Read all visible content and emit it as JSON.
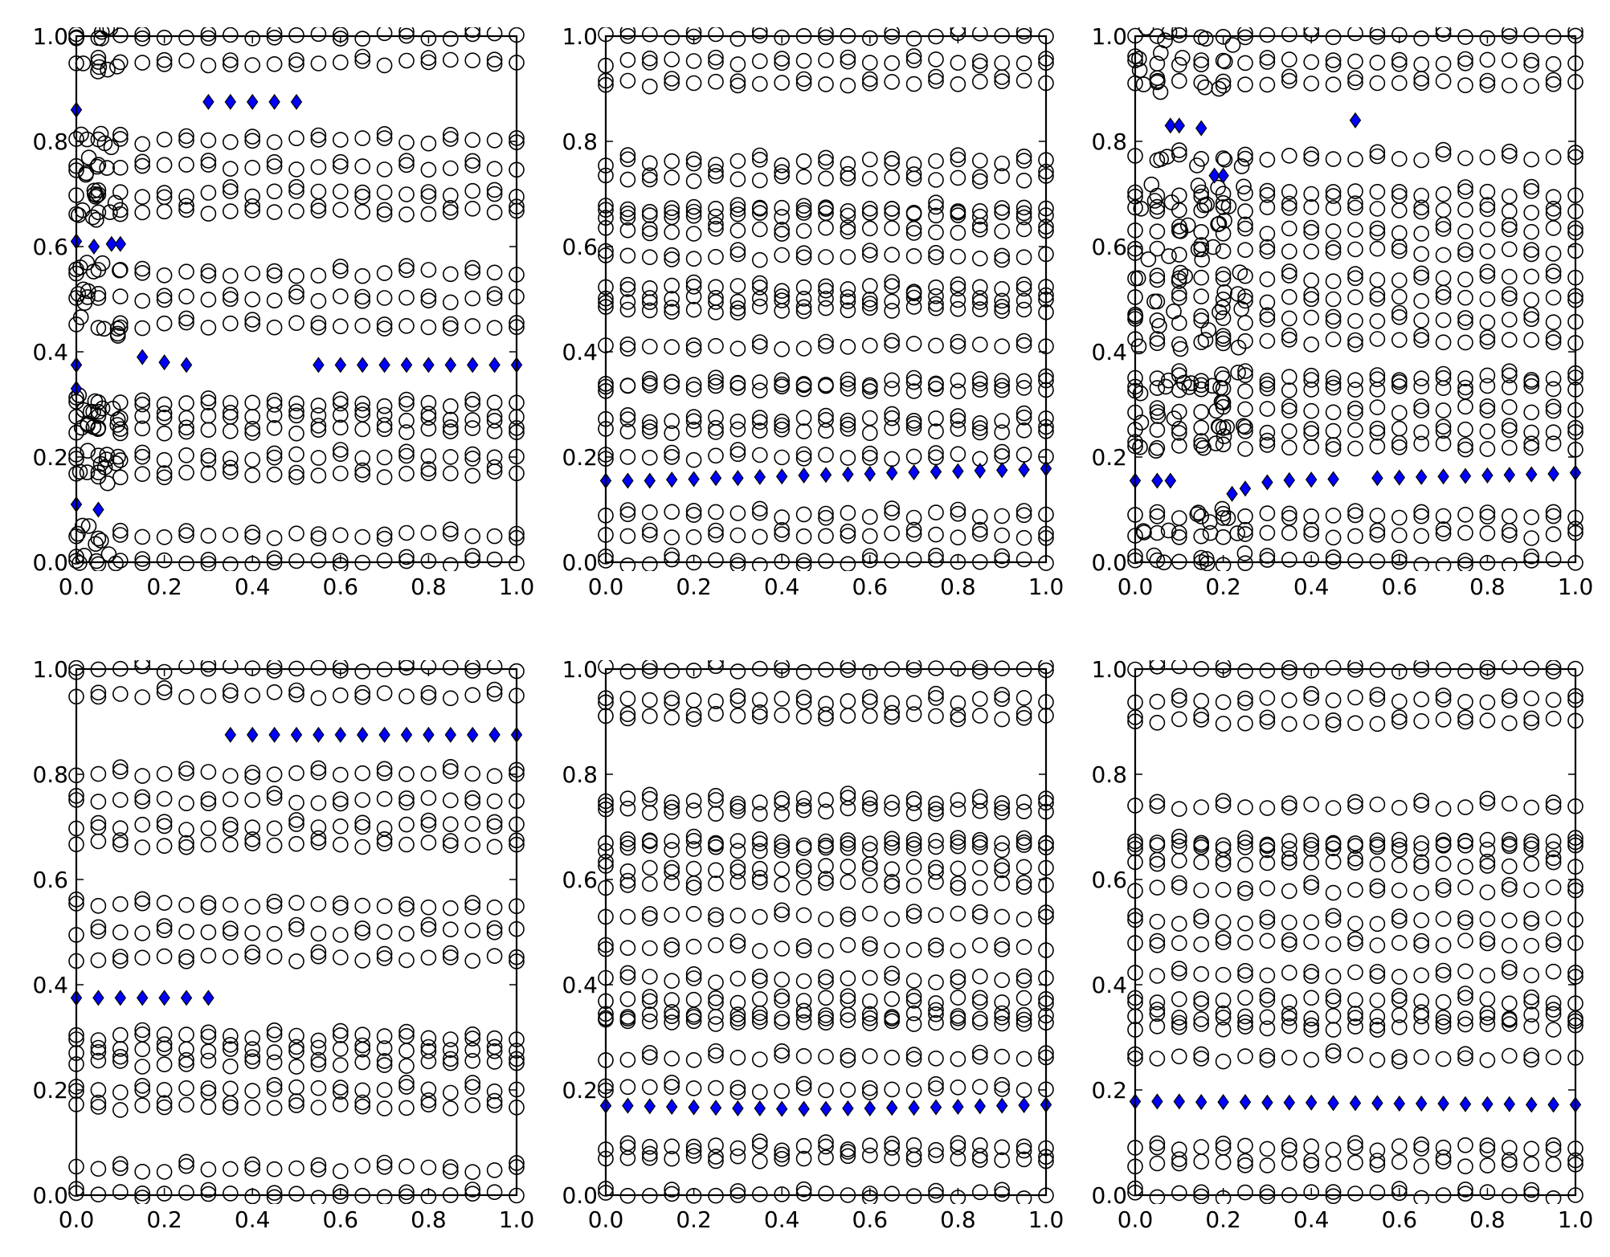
{
  "figure": {
    "rows": 2,
    "cols": 3,
    "hollow_marker_color": "#000000",
    "highlight_marker_color": "#0000ff",
    "axis_color": "#000000"
  },
  "chart_data": [
    {
      "type": "scatter",
      "title": "",
      "xlabel": "",
      "ylabel": "",
      "xlim": [
        0,
        1
      ],
      "ylim": [
        0,
        1
      ],
      "xticks": [
        "0.0",
        "0.2",
        "0.4",
        "0.6",
        "0.8",
        "1.0"
      ],
      "yticks": [
        "0.0",
        "0.2",
        "0.4",
        "0.6",
        "0.8",
        "1.0"
      ],
      "grid": false,
      "series": [
        {
          "marker": "hollow-circle",
          "bands": [
            {
              "y": 0.0
            },
            {
              "y": 0.05
            },
            {
              "y": 0.167
            },
            {
              "y": 0.2
            },
            {
              "y": 0.25
            },
            {
              "y": 0.275
            },
            {
              "y": 0.3
            },
            {
              "y": 0.45
            },
            {
              "y": 0.5
            },
            {
              "y": 0.55
            },
            {
              "y": 0.667
            },
            {
              "y": 0.7
            },
            {
              "y": 0.75
            },
            {
              "y": 0.8
            },
            {
              "y": 0.95
            },
            {
              "y": 1.0
            }
          ],
          "dense_x_range": [
            0.0,
            0.1
          ]
        },
        {
          "marker": "blue-diamond",
          "points": [
            [
              0.0,
              0.86
            ],
            [
              0.3,
              0.875
            ],
            [
              0.35,
              0.875
            ],
            [
              0.4,
              0.875
            ],
            [
              0.45,
              0.875
            ],
            [
              0.5,
              0.875
            ],
            [
              0.0,
              0.61
            ],
            [
              0.04,
              0.6
            ],
            [
              0.08,
              0.605
            ],
            [
              0.1,
              0.605
            ],
            [
              0.0,
              0.375
            ],
            [
              0.15,
              0.39
            ],
            [
              0.2,
              0.38
            ],
            [
              0.25,
              0.375
            ],
            [
              0.55,
              0.375
            ],
            [
              0.6,
              0.375
            ],
            [
              0.65,
              0.375
            ],
            [
              0.7,
              0.375
            ],
            [
              0.75,
              0.375
            ],
            [
              0.8,
              0.375
            ],
            [
              0.85,
              0.375
            ],
            [
              0.9,
              0.375
            ],
            [
              0.95,
              0.375
            ],
            [
              1.0,
              0.375
            ],
            [
              0.0,
              0.33
            ],
            [
              0.0,
              0.11
            ],
            [
              0.05,
              0.1
            ]
          ]
        }
      ]
    },
    {
      "type": "scatter",
      "title": "",
      "xlabel": "",
      "ylabel": "",
      "xlim": [
        0,
        1
      ],
      "ylim": [
        0,
        1
      ],
      "xticks": [
        "0.0",
        "0.2",
        "0.4",
        "0.6",
        "0.8",
        "1.0"
      ],
      "yticks": [
        "0.0",
        "0.2",
        "0.4",
        "0.6",
        "0.8",
        "1.0"
      ],
      "grid": false,
      "series": [
        {
          "marker": "hollow-circle",
          "bands": [
            {
              "y": 0.0
            },
            {
              "y": 0.05
            },
            {
              "y": 0.09
            },
            {
              "y": 0.2
            },
            {
              "y": 0.25
            },
            {
              "y": 0.27
            },
            {
              "y": 0.33
            },
            {
              "y": 0.34
            },
            {
              "y": 0.41
            },
            {
              "y": 0.48
            },
            {
              "y": 0.5
            },
            {
              "y": 0.52
            },
            {
              "y": 0.58
            },
            {
              "y": 0.63
            },
            {
              "y": 0.66
            },
            {
              "y": 0.67
            },
            {
              "y": 0.73
            },
            {
              "y": 0.76
            },
            {
              "y": 0.91
            },
            {
              "y": 0.95
            },
            {
              "y": 1.0
            }
          ]
        },
        {
          "marker": "blue-diamond",
          "points": [
            [
              0.0,
              0.155
            ],
            [
              0.05,
              0.155
            ],
            [
              0.1,
              0.155
            ],
            [
              0.15,
              0.157
            ],
            [
              0.2,
              0.158
            ],
            [
              0.25,
              0.16
            ],
            [
              0.3,
              0.16
            ],
            [
              0.35,
              0.162
            ],
            [
              0.4,
              0.163
            ],
            [
              0.45,
              0.165
            ],
            [
              0.5,
              0.166
            ],
            [
              0.55,
              0.167
            ],
            [
              0.6,
              0.168
            ],
            [
              0.65,
              0.17
            ],
            [
              0.7,
              0.171
            ],
            [
              0.75,
              0.172
            ],
            [
              0.8,
              0.173
            ],
            [
              0.85,
              0.174
            ],
            [
              0.9,
              0.175
            ],
            [
              0.95,
              0.176
            ],
            [
              1.0,
              0.178
            ]
          ]
        }
      ]
    },
    {
      "type": "scatter",
      "title": "",
      "xlabel": "",
      "ylabel": "",
      "xlim": [
        0,
        1
      ],
      "ylim": [
        0,
        1
      ],
      "xticks": [
        "0.0",
        "0.2",
        "0.4",
        "0.6",
        "0.8",
        "1.0"
      ],
      "yticks": [
        "0.0",
        "0.2",
        "0.4",
        "0.6",
        "0.8",
        "1.0"
      ],
      "grid": false,
      "series": [
        {
          "marker": "hollow-circle",
          "bands": [
            {
              "y": 0.0
            },
            {
              "y": 0.05
            },
            {
              "y": 0.09
            },
            {
              "y": 0.22
            },
            {
              "y": 0.25
            },
            {
              "y": 0.29
            },
            {
              "y": 0.33
            },
            {
              "y": 0.35
            },
            {
              "y": 0.42
            },
            {
              "y": 0.46
            },
            {
              "y": 0.5
            },
            {
              "y": 0.54
            },
            {
              "y": 0.59
            },
            {
              "y": 0.63
            },
            {
              "y": 0.67
            },
            {
              "y": 0.7
            },
            {
              "y": 0.77
            },
            {
              "y": 0.91
            },
            {
              "y": 0.95
            },
            {
              "y": 1.0
            }
          ],
          "dense_x_range": [
            0.0,
            0.25
          ]
        },
        {
          "marker": "blue-diamond",
          "points": [
            [
              0.0,
              0.155
            ],
            [
              0.05,
              0.155
            ],
            [
              0.08,
              0.155
            ],
            [
              0.22,
              0.13
            ],
            [
              0.25,
              0.14
            ],
            [
              0.3,
              0.152
            ],
            [
              0.35,
              0.156
            ],
            [
              0.4,
              0.157
            ],
            [
              0.45,
              0.158
            ],
            [
              0.55,
              0.16
            ],
            [
              0.6,
              0.161
            ],
            [
              0.65,
              0.162
            ],
            [
              0.7,
              0.163
            ],
            [
              0.75,
              0.164
            ],
            [
              0.8,
              0.165
            ],
            [
              0.85,
              0.166
            ],
            [
              0.9,
              0.167
            ],
            [
              0.95,
              0.168
            ],
            [
              1.0,
              0.17
            ],
            [
              0.08,
              0.83
            ],
            [
              0.1,
              0.83
            ],
            [
              0.15,
              0.825
            ],
            [
              0.18,
              0.735
            ],
            [
              0.2,
              0.735
            ],
            [
              0.5,
              0.84
            ]
          ]
        }
      ]
    },
    {
      "type": "scatter",
      "title": "",
      "xlabel": "",
      "ylabel": "",
      "xlim": [
        0,
        1
      ],
      "ylim": [
        0,
        1
      ],
      "xticks": [
        "0.0",
        "0.2",
        "0.4",
        "0.6",
        "0.8",
        "1.0"
      ],
      "yticks": [
        "0.0",
        "0.2",
        "0.4",
        "0.6",
        "0.8",
        "1.0"
      ],
      "grid": false,
      "series": [
        {
          "marker": "hollow-circle",
          "bands": [
            {
              "y": 0.0
            },
            {
              "y": 0.05
            },
            {
              "y": 0.167
            },
            {
              "y": 0.2
            },
            {
              "y": 0.25
            },
            {
              "y": 0.275
            },
            {
              "y": 0.3
            },
            {
              "y": 0.45
            },
            {
              "y": 0.5
            },
            {
              "y": 0.55
            },
            {
              "y": 0.667
            },
            {
              "y": 0.7
            },
            {
              "y": 0.75
            },
            {
              "y": 0.8
            },
            {
              "y": 0.95
            },
            {
              "y": 1.0
            }
          ]
        },
        {
          "marker": "blue-diamond",
          "points": [
            [
              0.0,
              0.375
            ],
            [
              0.05,
              0.375
            ],
            [
              0.1,
              0.375
            ],
            [
              0.15,
              0.375
            ],
            [
              0.2,
              0.375
            ],
            [
              0.25,
              0.375
            ],
            [
              0.3,
              0.375
            ],
            [
              0.35,
              0.875
            ],
            [
              0.4,
              0.875
            ],
            [
              0.45,
              0.875
            ],
            [
              0.5,
              0.875
            ],
            [
              0.55,
              0.875
            ],
            [
              0.6,
              0.875
            ],
            [
              0.65,
              0.875
            ],
            [
              0.7,
              0.875
            ],
            [
              0.75,
              0.875
            ],
            [
              0.8,
              0.875
            ],
            [
              0.85,
              0.875
            ],
            [
              0.9,
              0.875
            ],
            [
              0.95,
              0.875
            ],
            [
              1.0,
              0.875
            ]
          ]
        }
      ]
    },
    {
      "type": "scatter",
      "title": "",
      "xlabel": "",
      "ylabel": "",
      "xlim": [
        0,
        1
      ],
      "ylim": [
        0,
        1
      ],
      "xticks": [
        "0.0",
        "0.2",
        "0.4",
        "0.6",
        "0.8",
        "1.0"
      ],
      "yticks": [
        "0.0",
        "0.2",
        "0.4",
        "0.6",
        "0.8",
        "1.0"
      ],
      "grid": false,
      "series": [
        {
          "marker": "hollow-circle",
          "bands": [
            {
              "y": 0.0
            },
            {
              "y": 0.07
            },
            {
              "y": 0.09
            },
            {
              "y": 0.2
            },
            {
              "y": 0.26
            },
            {
              "y": 0.33
            },
            {
              "y": 0.34
            },
            {
              "y": 0.37
            },
            {
              "y": 0.41
            },
            {
              "y": 0.47
            },
            {
              "y": 0.53
            },
            {
              "y": 0.59
            },
            {
              "y": 0.62
            },
            {
              "y": 0.66
            },
            {
              "y": 0.67
            },
            {
              "y": 0.73
            },
            {
              "y": 0.75
            },
            {
              "y": 0.91
            },
            {
              "y": 0.94
            },
            {
              "y": 1.0
            }
          ]
        },
        {
          "marker": "blue-diamond",
          "points": [
            [
              0.0,
              0.17
            ],
            [
              0.05,
              0.17
            ],
            [
              0.1,
              0.169
            ],
            [
              0.15,
              0.168
            ],
            [
              0.2,
              0.167
            ],
            [
              0.25,
              0.166
            ],
            [
              0.3,
              0.165
            ],
            [
              0.35,
              0.165
            ],
            [
              0.4,
              0.164
            ],
            [
              0.45,
              0.164
            ],
            [
              0.5,
              0.164
            ],
            [
              0.55,
              0.165
            ],
            [
              0.6,
              0.165
            ],
            [
              0.65,
              0.166
            ],
            [
              0.7,
              0.166
            ],
            [
              0.75,
              0.167
            ],
            [
              0.8,
              0.168
            ],
            [
              0.85,
              0.169
            ],
            [
              0.9,
              0.17
            ],
            [
              0.95,
              0.171
            ],
            [
              1.0,
              0.172
            ]
          ]
        }
      ]
    },
    {
      "type": "scatter",
      "title": "",
      "xlabel": "",
      "ylabel": "",
      "xlim": [
        0,
        1
      ],
      "ylim": [
        0,
        1
      ],
      "xticks": [
        "0.0",
        "0.2",
        "0.4",
        "0.6",
        "0.8",
        "1.0"
      ],
      "yticks": [
        "0.0",
        "0.2",
        "0.4",
        "0.6",
        "0.8",
        "1.0"
      ],
      "grid": false,
      "series": [
        {
          "marker": "hollow-circle",
          "bands": [
            {
              "y": 0.0
            },
            {
              "y": 0.06
            },
            {
              "y": 0.09
            },
            {
              "y": 0.26
            },
            {
              "y": 0.32
            },
            {
              "y": 0.34
            },
            {
              "y": 0.37
            },
            {
              "y": 0.42
            },
            {
              "y": 0.48
            },
            {
              "y": 0.52
            },
            {
              "y": 0.58
            },
            {
              "y": 0.63
            },
            {
              "y": 0.66
            },
            {
              "y": 0.67
            },
            {
              "y": 0.74
            },
            {
              "y": 0.9
            },
            {
              "y": 0.94
            },
            {
              "y": 1.0
            }
          ]
        },
        {
          "marker": "blue-diamond",
          "points": [
            [
              0.0,
              0.178
            ],
            [
              0.05,
              0.178
            ],
            [
              0.1,
              0.178
            ],
            [
              0.15,
              0.177
            ],
            [
              0.2,
              0.177
            ],
            [
              0.25,
              0.177
            ],
            [
              0.3,
              0.176
            ],
            [
              0.35,
              0.176
            ],
            [
              0.4,
              0.176
            ],
            [
              0.45,
              0.175
            ],
            [
              0.5,
              0.175
            ],
            [
              0.55,
              0.175
            ],
            [
              0.6,
              0.174
            ],
            [
              0.65,
              0.174
            ],
            [
              0.7,
              0.174
            ],
            [
              0.75,
              0.173
            ],
            [
              0.8,
              0.173
            ],
            [
              0.85,
              0.173
            ],
            [
              0.9,
              0.172
            ],
            [
              0.95,
              0.172
            ],
            [
              1.0,
              0.172
            ]
          ]
        }
      ]
    }
  ]
}
